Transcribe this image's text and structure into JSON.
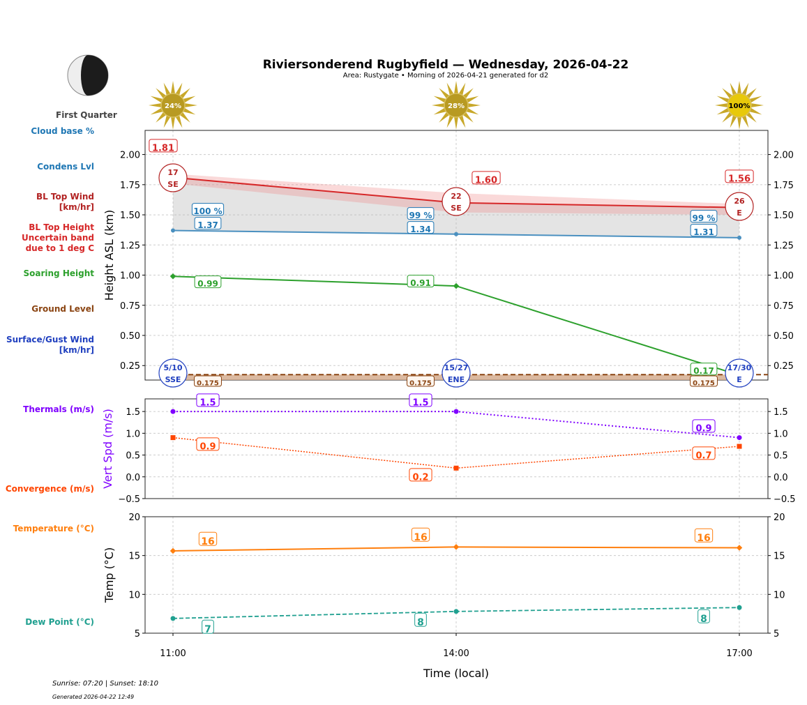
{
  "title": "Riviersonderend Rugbyfield — Wednesday, 2026-04-22",
  "subtitle": "Area: Rustygate • Morning of 2026-04-21 generated for d2",
  "moon": {
    "phase": "First Quarter"
  },
  "footer": {
    "sun": "Sunrise: 07:20 | Sunset: 18:10",
    "generated": "Generated 2026-04-22 12:49"
  },
  "colors": {
    "bl_top": "#d62728",
    "condens": "#1f77b4",
    "soaring": "#2ca02c",
    "ground": "#8b4513",
    "surface_wind": "#1f3fbf",
    "thermals": "#7f00ff",
    "convergence": "#ff4500",
    "temperature": "#ff7f0e",
    "dew": "#20a090",
    "sun": "#c8a82a"
  },
  "side_labels": {
    "cloud_base": "Cloud base %",
    "condens": "Condens Lvl",
    "bl_top_wind": "BL Top Wind\n[km/hr]",
    "bl_top_height": "BL Top Height\nUncertain band\ndue to 1 deg C",
    "soaring": "Soaring Height",
    "ground": "Ground Level",
    "surface_wind": "Surface/Gust Wind\n[km/hr]",
    "thermals": "Thermals (m/s)",
    "convergence": "Convergence (m/s)",
    "temperature": "Temperature (°C)",
    "dew": "Dew Point (°C)"
  },
  "chart_data": [
    {
      "type": "line",
      "ylabel": "Height ASL (km)",
      "ylim": [
        0.13,
        2.2
      ],
      "yticks": [
        "0.25",
        "0.50",
        "0.75",
        "1.00",
        "1.25",
        "1.50",
        "1.75",
        "2.00"
      ],
      "x": [
        "11:00",
        "14:00",
        "17:00"
      ],
      "grid": true,
      "sun_percent": [
        "24%",
        "28%",
        "100%"
      ],
      "bl_top": {
        "values": [
          1.81,
          1.6,
          1.56
        ],
        "labels": [
          "1.81",
          "1.60",
          "1.56"
        ],
        "band_low": [
          1.76,
          1.52,
          1.5
        ],
        "band_high": [
          1.84,
          1.68,
          1.59
        ]
      },
      "bl_top_wind": {
        "speed": [
          "17",
          "22",
          "26"
        ],
        "dir": [
          "SE",
          "SE",
          "E"
        ]
      },
      "condens": {
        "values": [
          1.37,
          1.34,
          1.31
        ],
        "labels": [
          "1.37",
          "1.34",
          "1.31"
        ]
      },
      "cloud_base_pct": [
        "100 %",
        "99 %",
        "99 %"
      ],
      "soaring": {
        "values": [
          0.99,
          0.91,
          0.17
        ],
        "labels": [
          "0.99",
          "0.91",
          "0.17"
        ]
      },
      "ground": {
        "value": 0.175,
        "labels": [
          "0.175",
          "0.175",
          "0.175"
        ]
      },
      "surface_wind": {
        "speed": [
          "5/10",
          "15/27",
          "17/30"
        ],
        "dir": [
          "SSE",
          "ENE",
          "E"
        ]
      }
    },
    {
      "type": "line",
      "ylabel": "Vert Spd (m/s)",
      "ylim": [
        -0.5,
        1.79
      ],
      "yticks": [
        "−0.5",
        "0.0",
        "0.5",
        "1.0",
        "1.5"
      ],
      "series": [
        {
          "key": "thermals",
          "values": [
            1.5,
            1.5,
            0.9
          ],
          "labels": [
            "1.5",
            "1.5",
            "0.9"
          ]
        },
        {
          "key": "convergence",
          "values": [
            0.9,
            0.2,
            0.7
          ],
          "labels": [
            "0.9",
            "0.2",
            "0.7"
          ]
        }
      ]
    },
    {
      "type": "line",
      "ylabel": "Temp (°C)",
      "xlabel": "Time (local)",
      "ylim": [
        5,
        20
      ],
      "yticks": [
        "5",
        "10",
        "15",
        "20"
      ],
      "series": [
        {
          "key": "temperature",
          "values": [
            15.6,
            16.1,
            16.0
          ],
          "labels": [
            "16",
            "16",
            "16"
          ]
        },
        {
          "key": "dew",
          "values": [
            6.9,
            7.8,
            8.3
          ],
          "labels": [
            "7",
            "8",
            "8"
          ]
        }
      ]
    }
  ]
}
